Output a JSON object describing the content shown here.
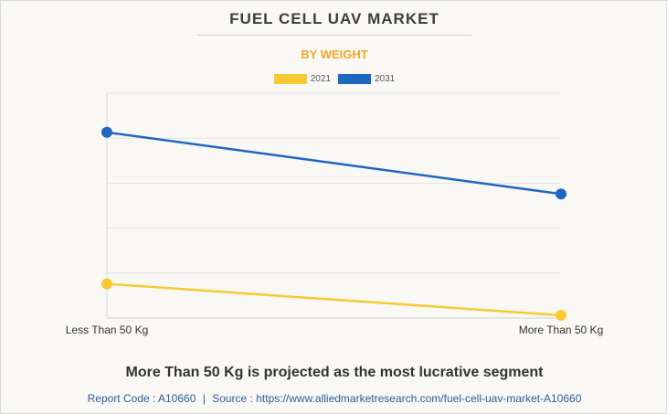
{
  "title": "FUEL CELL UAV MARKET",
  "subtitle": "BY WEIGHT",
  "headline": "More Than 50 Kg is projected as the most lucrative segment",
  "footer": {
    "report_code_label": "Report Code : A10660",
    "separator": "|",
    "source_label": "Source : https://www.alliedmarketresearch.com/fuel-cell-uav-market-A10660"
  },
  "chart_data": {
    "type": "line",
    "categories": [
      "Less Than 50 Kg",
      "More Than 50 Kg"
    ],
    "ylim": [
      0,
      50
    ],
    "grid": true,
    "legend_position": "top-center",
    "series": [
      {
        "name": "2021",
        "color": "#f9c934",
        "values": [
          7.6,
          0.6
        ]
      },
      {
        "name": "2031",
        "color": "#1f66c1",
        "values": [
          41.3,
          27.6
        ]
      }
    ]
  }
}
